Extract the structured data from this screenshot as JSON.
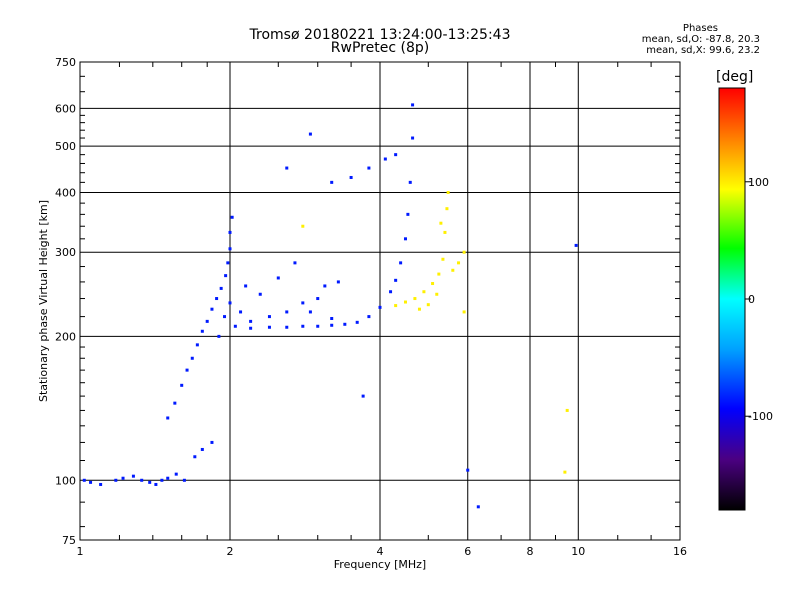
{
  "chart_data": {
    "type": "scatter",
    "title": "Tromsø 20180221 13:24:00-13:25:43",
    "subtitle": "RwPretec (8p)",
    "xlabel": "Frequency [MHz]",
    "ylabel": "Stationary phase Virtual Height [km]",
    "xscale": "log",
    "yscale": "log",
    "xlim": [
      1,
      16
    ],
    "ylim": [
      75,
      750
    ],
    "xticks": [
      1,
      2,
      4,
      6,
      8,
      10,
      16
    ],
    "yticks": [
      75,
      100,
      200,
      300,
      400,
      500,
      600,
      750
    ],
    "grid": true,
    "legend": {
      "position": "top-right",
      "title": "Phases",
      "lines": [
        "mean, sd,O: -87.8, 20.3",
        "mean, sd,X:  99.6, 23.2"
      ]
    },
    "colorbar": {
      "label": "[deg]",
      "range": [
        -180,
        180
      ],
      "ticks": [
        -100,
        0,
        100
      ]
    },
    "series": [
      {
        "name": "O-mode",
        "color_value": -87.8,
        "points": [
          [
            1.02,
            100
          ],
          [
            1.05,
            99
          ],
          [
            1.1,
            98
          ],
          [
            1.18,
            100
          ],
          [
            1.22,
            101
          ],
          [
            1.28,
            102
          ],
          [
            1.33,
            100
          ],
          [
            1.38,
            99
          ],
          [
            1.42,
            98
          ],
          [
            1.46,
            100
          ],
          [
            1.5,
            101
          ],
          [
            1.56,
            103
          ],
          [
            1.62,
            100
          ],
          [
            1.7,
            112
          ],
          [
            1.76,
            116
          ],
          [
            1.84,
            120
          ],
          [
            1.5,
            135
          ],
          [
            1.55,
            145
          ],
          [
            1.6,
            158
          ],
          [
            1.64,
            170
          ],
          [
            1.68,
            180
          ],
          [
            1.72,
            192
          ],
          [
            1.76,
            205
          ],
          [
            1.8,
            215
          ],
          [
            1.84,
            228
          ],
          [
            1.88,
            240
          ],
          [
            1.92,
            252
          ],
          [
            1.96,
            268
          ],
          [
            1.98,
            285
          ],
          [
            2.0,
            305
          ],
          [
            2.0,
            330
          ],
          [
            2.02,
            355
          ],
          [
            1.9,
            200
          ],
          [
            1.95,
            220
          ],
          [
            2.0,
            235
          ],
          [
            2.05,
            210
          ],
          [
            2.1,
            225
          ],
          [
            2.15,
            255
          ],
          [
            2.2,
            215
          ],
          [
            2.3,
            245
          ],
          [
            2.4,
            220
          ],
          [
            2.5,
            265
          ],
          [
            2.6,
            225
          ],
          [
            2.7,
            285
          ],
          [
            2.8,
            235
          ],
          [
            2.9,
            225
          ],
          [
            3.0,
            240
          ],
          [
            3.1,
            255
          ],
          [
            3.2,
            218
          ],
          [
            3.3,
            260
          ],
          [
            2.2,
            208
          ],
          [
            2.4,
            209
          ],
          [
            2.6,
            209
          ],
          [
            2.8,
            210
          ],
          [
            3.0,
            210
          ],
          [
            3.2,
            211
          ],
          [
            3.4,
            212
          ],
          [
            3.6,
            214
          ],
          [
            3.8,
            220
          ],
          [
            4.0,
            230
          ],
          [
            4.2,
            248
          ],
          [
            4.3,
            262
          ],
          [
            4.4,
            285
          ],
          [
            4.5,
            320
          ],
          [
            4.55,
            360
          ],
          [
            4.6,
            420
          ],
          [
            4.65,
            520
          ],
          [
            4.65,
            610
          ],
          [
            3.2,
            420
          ],
          [
            3.5,
            430
          ],
          [
            3.8,
            450
          ],
          [
            4.1,
            470
          ],
          [
            4.3,
            480
          ],
          [
            2.6,
            450
          ],
          [
            2.9,
            530
          ],
          [
            3.7,
            150
          ],
          [
            6.0,
            105
          ],
          [
            6.3,
            88
          ],
          [
            9.9,
            310
          ]
        ]
      },
      {
        "name": "X-mode",
        "color_value": 99.6,
        "points": [
          [
            4.3,
            232
          ],
          [
            4.5,
            236
          ],
          [
            4.7,
            240
          ],
          [
            4.9,
            248
          ],
          [
            5.1,
            258
          ],
          [
            5.25,
            270
          ],
          [
            5.35,
            290
          ],
          [
            5.4,
            330
          ],
          [
            5.45,
            370
          ],
          [
            5.48,
            400
          ],
          [
            5.3,
            345
          ],
          [
            5.6,
            275
          ],
          [
            5.75,
            285
          ],
          [
            5.9,
            300
          ],
          [
            4.8,
            228
          ],
          [
            5.0,
            233
          ],
          [
            5.2,
            245
          ],
          [
            9.5,
            140
          ],
          [
            9.4,
            104
          ],
          [
            2.8,
            340
          ],
          [
            5.9,
            225
          ]
        ]
      }
    ]
  }
}
